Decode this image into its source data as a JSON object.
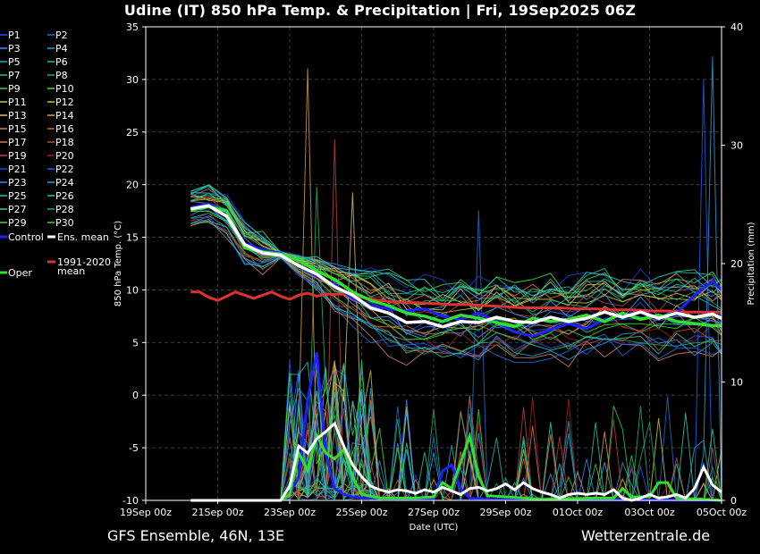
{
  "title": "Udine  (IT)  850 hPa Temp. & Precipitation | Fri, 19Sep2025 06Z",
  "footer": {
    "left": "GFS Ensemble, 46N, 13E",
    "right": "Wetterzentrale.de"
  },
  "legend": {
    "members": [
      {
        "label": "P1",
        "color": "#1f4fff"
      },
      {
        "label": "P2",
        "color": "#1f6fd8"
      },
      {
        "label": "P3",
        "color": "#3f8fff"
      },
      {
        "label": "P4",
        "color": "#2aa0d8"
      },
      {
        "label": "P5",
        "color": "#20b0c0"
      },
      {
        "label": "P6",
        "color": "#20c0a0"
      },
      {
        "label": "P7",
        "color": "#20c0b0"
      },
      {
        "label": "P8",
        "color": "#20b070"
      },
      {
        "label": "P9",
        "color": "#30d060"
      },
      {
        "label": "P10",
        "color": "#40e040"
      },
      {
        "label": "P11",
        "color": "#c0d040"
      },
      {
        "label": "P12",
        "color": "#d0c040"
      },
      {
        "label": "P13",
        "color": "#e0c060"
      },
      {
        "label": "P14",
        "color": "#e0a040"
      },
      {
        "label": "P15",
        "color": "#d08060"
      },
      {
        "label": "P16",
        "color": "#c07040"
      },
      {
        "label": "P17",
        "color": "#e07050"
      },
      {
        "label": "P18",
        "color": "#c05030"
      },
      {
        "label": "P19",
        "color": "#c04040"
      },
      {
        "label": "P20",
        "color": "#a02020"
      },
      {
        "label": "P21",
        "color": "#2040e0"
      },
      {
        "label": "P22",
        "color": "#2060ff"
      },
      {
        "label": "P23",
        "color": "#4080ff"
      },
      {
        "label": "P24",
        "color": "#30a0e0"
      },
      {
        "label": "P25",
        "color": "#20c0c8"
      },
      {
        "label": "P26",
        "color": "#20d0a0"
      },
      {
        "label": "P27",
        "color": "#30d0b0"
      },
      {
        "label": "P28",
        "color": "#20b060"
      },
      {
        "label": "P29",
        "color": "#40d050"
      },
      {
        "label": "P30",
        "color": "#30e030"
      }
    ],
    "control": {
      "label": "Control",
      "color": "#2020ff"
    },
    "ens_mean": {
      "label": "Ens. mean",
      "color": "#ffffff"
    },
    "climate": {
      "label": "1991-2020\nmean",
      "line1": "1991-2020",
      "line2": "mean",
      "color": "#e03030"
    },
    "oper": {
      "label": "Oper",
      "color": "#30e030"
    }
  },
  "chart_data": {
    "type": "line",
    "xlabel": "Date (UTC)",
    "ylabel": "850 hPa Temp. (°C)",
    "y2label": "Precipitation (mm)",
    "ylim": [
      -10,
      35
    ],
    "y2lim": [
      0,
      40
    ],
    "yticks": [
      -10,
      -5,
      0,
      5,
      10,
      15,
      20,
      25,
      30,
      35
    ],
    "y2ticks": [
      0,
      10,
      20,
      30,
      40
    ],
    "xlim_days": [
      0,
      16
    ],
    "xticks": [
      "19Sep 00z",
      "21Sep 00z",
      "23Sep 00z",
      "25Sep 00z",
      "27Sep 00z",
      "29Sep 00z",
      "01Oct 00z",
      "03Oct 00z",
      "05Oct 00z"
    ],
    "grid": true,
    "ens_mean_temp": [
      [
        1.25,
        17.7
      ],
      [
        1.75,
        18
      ],
      [
        2.25,
        17
      ],
      [
        2.75,
        14.3
      ],
      [
        3.25,
        13.5
      ],
      [
        3.75,
        13.3
      ],
      [
        4.25,
        12.3
      ],
      [
        4.75,
        11.5
      ],
      [
        5.25,
        10.3
      ],
      [
        5.75,
        9.5
      ],
      [
        6.25,
        8.3
      ],
      [
        6.75,
        7.8
      ],
      [
        7.25,
        6.9
      ],
      [
        7.75,
        7.0
      ],
      [
        8.25,
        6.5
      ],
      [
        8.75,
        7.0
      ],
      [
        9.25,
        6.9
      ],
      [
        9.75,
        7.4
      ],
      [
        10.25,
        7.0
      ],
      [
        10.75,
        6.9
      ],
      [
        11.25,
        7.4
      ],
      [
        11.75,
        7.0
      ],
      [
        12.25,
        7.3
      ],
      [
        12.75,
        7.9
      ],
      [
        13.25,
        7.4
      ],
      [
        13.75,
        7.9
      ],
      [
        14.25,
        7.3
      ],
      [
        14.75,
        7.8
      ],
      [
        15.25,
        7.4
      ],
      [
        15.75,
        7.7
      ],
      [
        16,
        7.3
      ]
    ],
    "control_temp": [
      [
        1.25,
        17.8
      ],
      [
        1.75,
        18.2
      ],
      [
        2.25,
        17.2
      ],
      [
        2.75,
        14.4
      ],
      [
        3.25,
        13.8
      ],
      [
        3.75,
        13.5
      ],
      [
        4.25,
        12.2
      ],
      [
        4.75,
        11.3
      ],
      [
        5.25,
        10.5
      ],
      [
        5.75,
        9.2
      ],
      [
        6.25,
        8.5
      ],
      [
        6.75,
        8.2
      ],
      [
        7.25,
        8.0
      ],
      [
        7.75,
        8.2
      ],
      [
        8.25,
        7.5
      ],
      [
        8.75,
        7.2
      ],
      [
        9.25,
        7.8
      ],
      [
        9.75,
        7.0
      ],
      [
        10.25,
        6.0
      ],
      [
        10.75,
        5.6
      ],
      [
        11.25,
        6.2
      ],
      [
        11.75,
        6.8
      ],
      [
        12.25,
        6.3
      ],
      [
        12.75,
        7.2
      ],
      [
        13.25,
        7.6
      ],
      [
        13.75,
        7.9
      ],
      [
        14.25,
        7.4
      ],
      [
        14.75,
        7.8
      ],
      [
        15.25,
        9.5
      ],
      [
        15.75,
        10.8
      ],
      [
        16,
        10.0
      ]
    ],
    "oper_temp": [
      [
        1.25,
        17.6
      ],
      [
        1.75,
        17.9
      ],
      [
        2.25,
        17.5
      ],
      [
        2.75,
        14.0
      ],
      [
        3.25,
        13.6
      ],
      [
        3.75,
        13.4
      ],
      [
        4.25,
        12.8
      ],
      [
        4.75,
        11.8
      ],
      [
        5.25,
        11.0
      ],
      [
        5.75,
        9.8
      ],
      [
        6.25,
        9.0
      ],
      [
        6.75,
        8.5
      ],
      [
        7.25,
        7.8
      ],
      [
        7.75,
        7.5
      ],
      [
        8.25,
        7.0
      ],
      [
        8.75,
        7.6
      ],
      [
        9.25,
        7.3
      ],
      [
        9.75,
        6.9
      ],
      [
        10.25,
        6.5
      ],
      [
        10.75,
        7.3
      ],
      [
        11.25,
        7.0
      ],
      [
        11.75,
        7.2
      ],
      [
        12.25,
        7.6
      ],
      [
        12.75,
        7.0
      ],
      [
        13.25,
        7.8
      ],
      [
        13.75,
        7.2
      ],
      [
        14.25,
        7.6
      ],
      [
        14.75,
        7.0
      ],
      [
        15.25,
        6.8
      ],
      [
        15.75,
        6.6
      ],
      [
        16,
        6.6
      ]
    ],
    "climate_mean_temp": [
      [
        1.25,
        9.8
      ],
      [
        1.5,
        9.8
      ],
      [
        1.75,
        9.3
      ],
      [
        2,
        9.0
      ],
      [
        2.25,
        9.4
      ],
      [
        2.5,
        9.8
      ],
      [
        2.75,
        9.5
      ],
      [
        3,
        9.2
      ],
      [
        3.25,
        9.5
      ],
      [
        3.5,
        9.8
      ],
      [
        3.75,
        9.4
      ],
      [
        4,
        9.1
      ],
      [
        4.25,
        9.5
      ],
      [
        4.5,
        9.7
      ],
      [
        4.75,
        9.4
      ],
      [
        5,
        9.6
      ],
      [
        5.5,
        9.6
      ],
      [
        6,
        9.3
      ],
      [
        6.5,
        9.0
      ],
      [
        7,
        8.8
      ],
      [
        7.5,
        8.8
      ],
      [
        8,
        8.7
      ],
      [
        8.5,
        8.6
      ],
      [
        9,
        8.6
      ],
      [
        9.5,
        8.5
      ],
      [
        10,
        8.4
      ],
      [
        10.5,
        8.3
      ],
      [
        11,
        8.3
      ],
      [
        11.5,
        8.3
      ],
      [
        12,
        8.2
      ],
      [
        12.5,
        8.2
      ],
      [
        13,
        8.1
      ],
      [
        13.5,
        8.1
      ],
      [
        14,
        8.0
      ],
      [
        14.5,
        8.0
      ],
      [
        15,
        7.9
      ],
      [
        15.5,
        7.9
      ],
      [
        16,
        7.9
      ]
    ],
    "ens_mean_precip": [
      [
        1.25,
        0
      ],
      [
        2,
        0
      ],
      [
        3,
        0
      ],
      [
        3.75,
        0
      ],
      [
        4.0,
        1.2
      ],
      [
        4.25,
        4.6
      ],
      [
        4.5,
        4.0
      ],
      [
        4.75,
        5.2
      ],
      [
        5.0,
        5.8
      ],
      [
        5.25,
        6.5
      ],
      [
        5.5,
        4.6
      ],
      [
        5.75,
        3.0
      ],
      [
        6.0,
        2.0
      ],
      [
        6.25,
        1.2
      ],
      [
        6.5,
        0.9
      ],
      [
        6.75,
        0.7
      ],
      [
        7.0,
        0.9
      ],
      [
        7.25,
        0.8
      ],
      [
        7.5,
        0.6
      ],
      [
        7.75,
        0.9
      ],
      [
        8.0,
        0.7
      ],
      [
        8.25,
        1.1
      ],
      [
        8.5,
        0.8
      ],
      [
        8.75,
        0.5
      ],
      [
        9.0,
        1.0
      ],
      [
        9.25,
        1.1
      ],
      [
        9.5,
        0.8
      ],
      [
        9.75,
        1.0
      ],
      [
        10.0,
        1.4
      ],
      [
        10.25,
        0.9
      ],
      [
        10.5,
        1.5
      ],
      [
        10.75,
        1.0
      ],
      [
        11.0,
        0.7
      ],
      [
        11.25,
        0.5
      ],
      [
        11.5,
        0.2
      ],
      [
        11.75,
        0.5
      ],
      [
        12.0,
        0.6
      ],
      [
        12.25,
        0.5
      ],
      [
        12.5,
        0.6
      ],
      [
        12.75,
        0.5
      ],
      [
        13.0,
        0.9
      ],
      [
        13.25,
        0.2
      ],
      [
        13.5,
        0.0
      ],
      [
        13.75,
        0.2
      ],
      [
        14.0,
        0.5
      ],
      [
        14.25,
        0.2
      ],
      [
        14.5,
        0.3
      ],
      [
        14.75,
        0.5
      ],
      [
        15.0,
        0.2
      ],
      [
        15.25,
        1.0
      ],
      [
        15.5,
        2.8
      ],
      [
        15.75,
        1.3
      ],
      [
        16,
        0.7
      ]
    ],
    "control_precip": [
      [
        1.25,
        0
      ],
      [
        3.75,
        0
      ],
      [
        4.0,
        0.5
      ],
      [
        4.25,
        2.0
      ],
      [
        4.5,
        8.5
      ],
      [
        4.75,
        12.5
      ],
      [
        5.0,
        4.0
      ],
      [
        5.25,
        1.0
      ],
      [
        5.5,
        0.5
      ],
      [
        5.75,
        0.3
      ],
      [
        6.0,
        0.2
      ],
      [
        8.0,
        0.1
      ],
      [
        8.25,
        2.5
      ],
      [
        8.5,
        3.0
      ],
      [
        8.75,
        1.0
      ],
      [
        9.0,
        0.2
      ],
      [
        9.5,
        0.1
      ],
      [
        16,
        0
      ]
    ],
    "oper_precip": [
      [
        1.25,
        0
      ],
      [
        3.75,
        0
      ],
      [
        4.0,
        0.5
      ],
      [
        4.25,
        4.0
      ],
      [
        4.5,
        2.5
      ],
      [
        4.75,
        5.5
      ],
      [
        5.0,
        4.0
      ],
      [
        5.25,
        3.5
      ],
      [
        5.5,
        4.3
      ],
      [
        5.75,
        2.0
      ],
      [
        6.0,
        0.5
      ],
      [
        6.5,
        0.2
      ],
      [
        7.5,
        0.2
      ],
      [
        8.0,
        0.3
      ],
      [
        8.25,
        1.5
      ],
      [
        8.5,
        1.0
      ],
      [
        9.0,
        5.4
      ],
      [
        9.25,
        2.0
      ],
      [
        9.5,
        0.4
      ],
      [
        10.0,
        0.3
      ],
      [
        11.0,
        0.1
      ],
      [
        12.5,
        0.2
      ],
      [
        13.0,
        0.2
      ],
      [
        13.25,
        1.0
      ],
      [
        13.5,
        0.3
      ],
      [
        14.0,
        0.3
      ],
      [
        14.25,
        1.5
      ],
      [
        14.5,
        1.5
      ],
      [
        14.75,
        0.2
      ],
      [
        15.5,
        0.1
      ],
      [
        16,
        0
      ]
    ]
  }
}
